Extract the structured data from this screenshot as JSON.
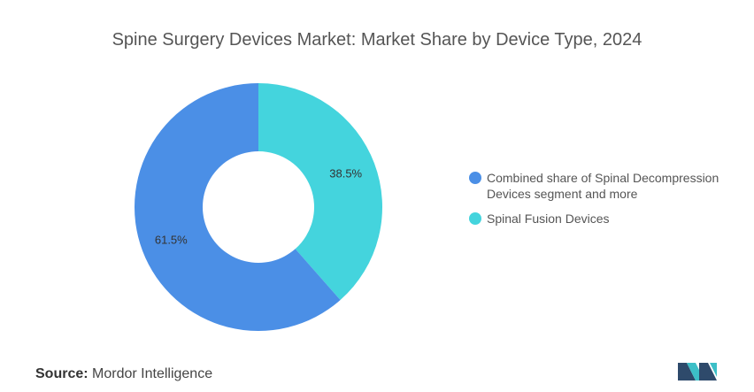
{
  "header": {
    "title": "Spine Surgery Devices Market: Market Share by Device Type, 2024"
  },
  "chart_data": {
    "type": "pie",
    "donut": true,
    "title": "Spine Surgery Devices Market: Market Share by Device Type, 2024",
    "series": [
      {
        "name": "Spinal Fusion Devices",
        "value": 38.5,
        "label": "38.5%",
        "color": "#44D4DD"
      },
      {
        "name": "Combined share of Spinal Decompression Devices segment and more",
        "value": 61.5,
        "label": "61.5%",
        "color": "#4B8FE6"
      }
    ],
    "legend": {
      "position": "right",
      "items": [
        {
          "label": "Combined share of Spinal Decompression Devices segment and more",
          "color": "#4B8FE6"
        },
        {
          "label": "Spinal Fusion Devices",
          "color": "#44D4DD"
        }
      ]
    }
  },
  "footer": {
    "source_label": "Source:",
    "source_value": "Mordor Intelligence"
  },
  "logo": {
    "colors": [
      "#2E4A6B",
      "#3CBFC7"
    ]
  }
}
